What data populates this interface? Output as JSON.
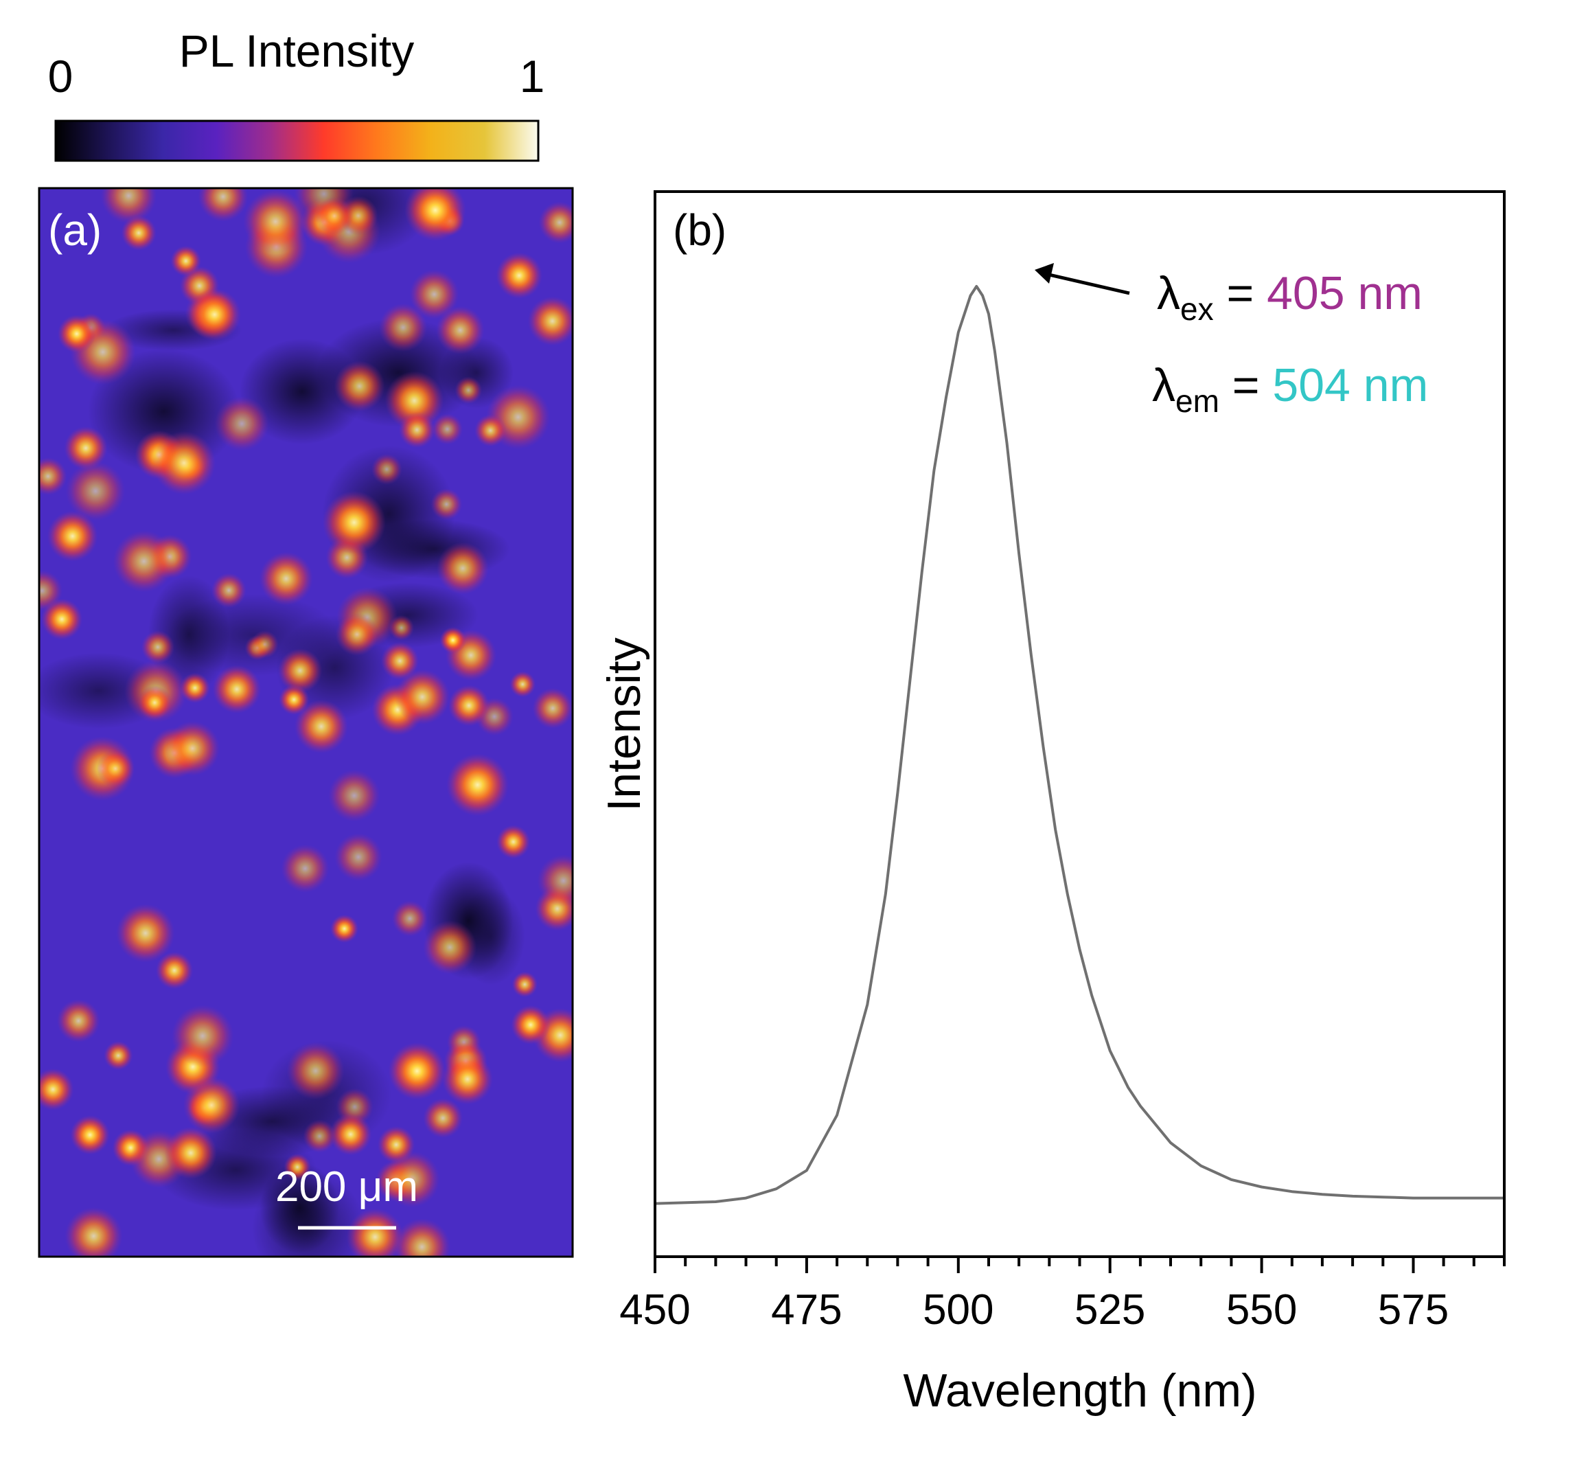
{
  "colorbar": {
    "title": "PL Intensity",
    "min_label": "0",
    "max_label": "1",
    "colors": [
      "#000000",
      "#1e1458",
      "#3a27a8",
      "#5a22c0",
      "#a02c8c",
      "#ff3b2a",
      "#ff7a1c",
      "#f3b21a",
      "#e6c53a",
      "#fbfbf0"
    ]
  },
  "chart_data": [
    {
      "type": "heatmap",
      "panel_label": "(a)",
      "title": "",
      "colorbar_label": "PL Intensity",
      "value_range": [
        0,
        1
      ],
      "scale_bar_label": "200 μm",
      "bright_spot_count_approx": 120
    },
    {
      "type": "line",
      "panel_label": "(b)",
      "title": "",
      "xlabel": "Wavelength (nm)",
      "ylabel": "Intensity",
      "xlim": [
        450,
        590
      ],
      "ylim": [
        0,
        1.05
      ],
      "xticks": [
        450,
        475,
        500,
        525,
        550,
        575
      ],
      "minor_tick_step": 5,
      "y_tick_labels": false,
      "series": [
        {
          "color": "#707070",
          "x": [
            450,
            460,
            465,
            470,
            475,
            480,
            485,
            488,
            490,
            492,
            494,
            496,
            498,
            500,
            502,
            503,
            504,
            505,
            506,
            508,
            510,
            512,
            514,
            516,
            518,
            520,
            522,
            525,
            528,
            530,
            535,
            540,
            545,
            550,
            555,
            560,
            565,
            570,
            575,
            580,
            585,
            590
          ],
          "y": [
            0.004,
            0.006,
            0.01,
            0.02,
            0.04,
            0.1,
            0.22,
            0.34,
            0.45,
            0.57,
            0.69,
            0.8,
            0.88,
            0.95,
            0.99,
            1.0,
            0.99,
            0.97,
            0.93,
            0.83,
            0.71,
            0.6,
            0.5,
            0.41,
            0.34,
            0.28,
            0.23,
            0.17,
            0.13,
            0.11,
            0.07,
            0.045,
            0.03,
            0.022,
            0.017,
            0.014,
            0.012,
            0.011,
            0.01,
            0.01,
            0.01,
            0.01
          ]
        }
      ],
      "annotations": {
        "lambda_symbol": "λ",
        "ex_subscript": "ex",
        "ex_equals": " = ",
        "ex_value": "405 nm",
        "ex_color": "#a03090",
        "em_subscript": "em",
        "em_equals": " = ",
        "em_value": "504 nm",
        "em_color": "#33c6c6"
      }
    }
  ]
}
